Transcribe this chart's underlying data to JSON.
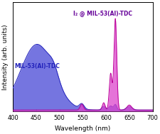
{
  "title": "",
  "xlabel": "Wavelength (nm)",
  "ylabel": "Intensity (arb. units)",
  "xlim": [
    400,
    700
  ],
  "ylim": [
    0,
    1.08
  ],
  "background_color": "#ffffff",
  "label_mil": "MIL-53(Al)-TDC",
  "label_i2": "I₂ @ MIL-53(Al)-TDC",
  "mil_color": "#2222bb",
  "mil_fill": "#6666dd",
  "i2_color": "#bb0099",
  "i2_fill": "#dd44cc",
  "xticks": [
    400,
    450,
    500,
    550,
    600,
    650,
    700
  ]
}
